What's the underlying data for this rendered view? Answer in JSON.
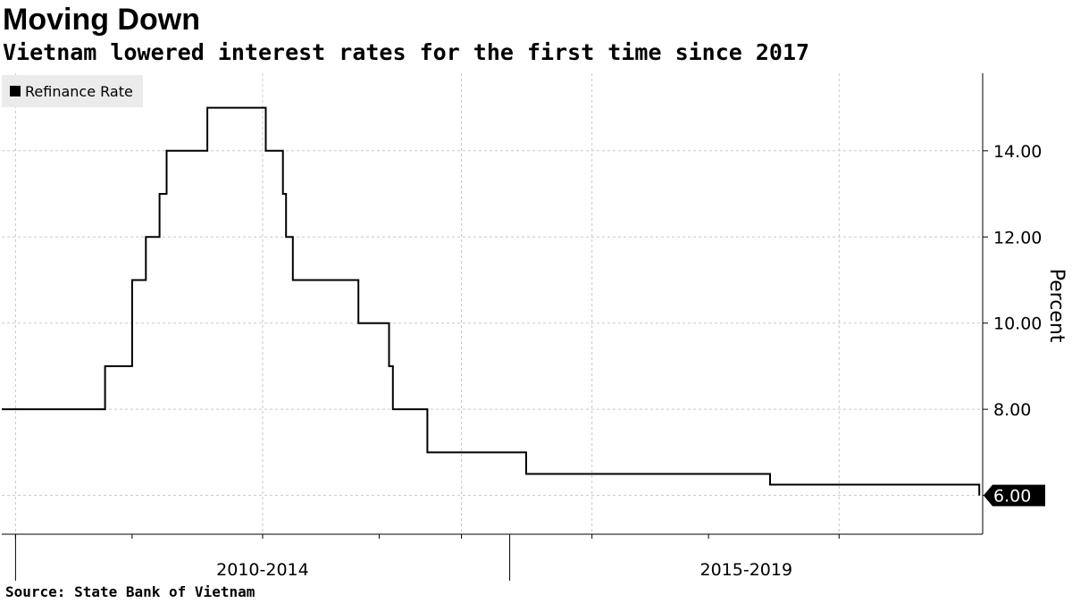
{
  "title": "Moving Down",
  "subtitle": "Vietnam lowered interest rates for the first time since 2017",
  "source": "Source:  State Bank of Vietnam",
  "colors": {
    "line": "#000000",
    "grid": "#c8c8c8",
    "background": "#ffffff",
    "legend_bg": "#ebebeb"
  },
  "chart_data": {
    "type": "line",
    "line_shape": "step",
    "title": "Moving Down",
    "subtitle": "Vietnam lowered interest rates for the first time since 2017",
    "ylabel": "Percent",
    "y_axis_side": "right",
    "ylim": [
      5.1,
      15.8
    ],
    "yticks": [
      6,
      8,
      10,
      12,
      14
    ],
    "ytick_labels": [
      "6.00",
      "8.00",
      "10.00",
      "12.00",
      "14.00"
    ],
    "xlim": [
      "2007-11-01",
      "2019-09-30"
    ],
    "x_groups": [
      {
        "label": "2010-2014",
        "start": "2008-01-01",
        "end": "2014-01-01"
      },
      {
        "label": "2015-2019",
        "start": "2014-01-01",
        "end": "2020-01-01"
      }
    ],
    "x_minor_ticks": [
      "2008-01-01",
      "2009-06-01",
      "2011-01-01",
      "2012-06-01",
      "2013-06-01",
      "2015-01-01",
      "2016-06-01",
      "2018-01-01"
    ],
    "x_grid": [
      "2008-01-01",
      "2011-01-01",
      "2013-06-01",
      "2015-01-01",
      "2018-01-01"
    ],
    "legend": {
      "placement": "top-left",
      "entries": [
        "Refinance Rate"
      ]
    },
    "last_value_label": "6.00",
    "series": [
      {
        "name": "Refinance Rate",
        "x": [
          "2007-11-01",
          "2009-02-01",
          "2009-06-01",
          "2009-06-15",
          "2009-08-01",
          "2009-10-01",
          "2009-11-01",
          "2010-05-01",
          "2010-11-01",
          "2011-01-15",
          "2011-03-20",
          "2011-04-01",
          "2011-04-15",
          "2011-05-15",
          "2012-03-01",
          "2012-07-15",
          "2012-08-01",
          "2013-01-01",
          "2014-03-15",
          "2017-03-01",
          "2019-09-15"
        ],
        "values": [
          8,
          9,
          11,
          11,
          12,
          13,
          14,
          15,
          15,
          14,
          14,
          13,
          12,
          11,
          10,
          9,
          8,
          7,
          6.5,
          6.25,
          6
        ]
      }
    ]
  }
}
